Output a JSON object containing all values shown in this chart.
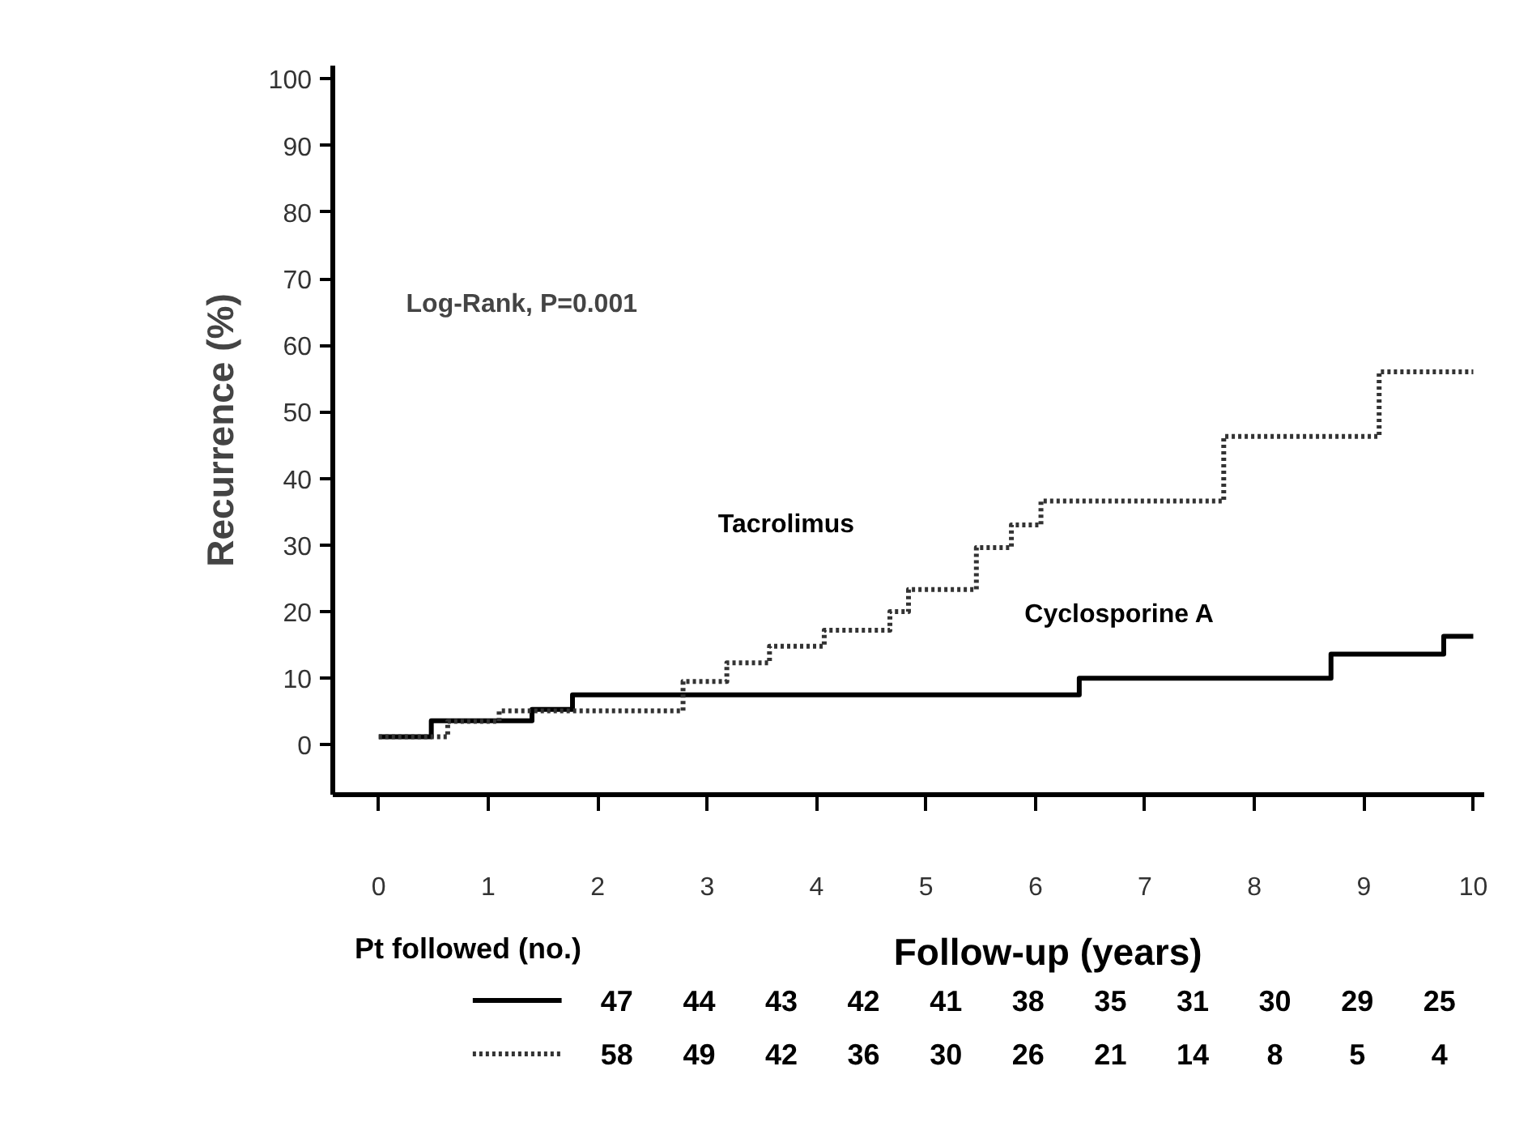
{
  "chart_data": {
    "type": "step",
    "xlabel": "Follow-up (years)",
    "ylabel": "Recurrence (%)",
    "xlim": [
      -0.42,
      10.1
    ],
    "ylim": [
      -7.5,
      102
    ],
    "xticks": [
      0,
      1,
      2,
      3,
      4,
      5,
      6,
      7,
      8,
      9,
      10
    ],
    "yticks": [
      0,
      10,
      20,
      30,
      40,
      50,
      60,
      70,
      80,
      90,
      100
    ],
    "grid": false,
    "series": [
      {
        "name": "Cyclosporine A",
        "color": "#000000",
        "line_style": "solid",
        "x": [
          0,
          0.48,
          1.4,
          1.77,
          6.4,
          8.7,
          9.73,
          10
        ],
        "values": [
          1.2,
          3.6,
          5.3,
          7.5,
          10,
          13.6,
          16.3,
          16.3
        ]
      },
      {
        "name": "Tacrolimus",
        "color": "#333333",
        "line_style": "dotted",
        "x": [
          0,
          0.63,
          1.1,
          2.2,
          2.78,
          3.18,
          3.57,
          4.07,
          4.67,
          4.84,
          5.46,
          5.78,
          6.05,
          7.72,
          9.14,
          10
        ],
        "values": [
          1.2,
          3.5,
          5.1,
          5.1,
          9.5,
          12.3,
          14.8,
          17.2,
          20,
          23.3,
          29.6,
          33,
          36.6,
          46.3,
          56,
          56
        ]
      }
    ],
    "annotations": [
      "Log-Rank, P=0.001",
      "Pt followed (no.)",
      "47 44 43 42 41 38 35 31 30 29 25",
      "58 49 42 36 30 26 21 14 8 5 4"
    ]
  }
}
